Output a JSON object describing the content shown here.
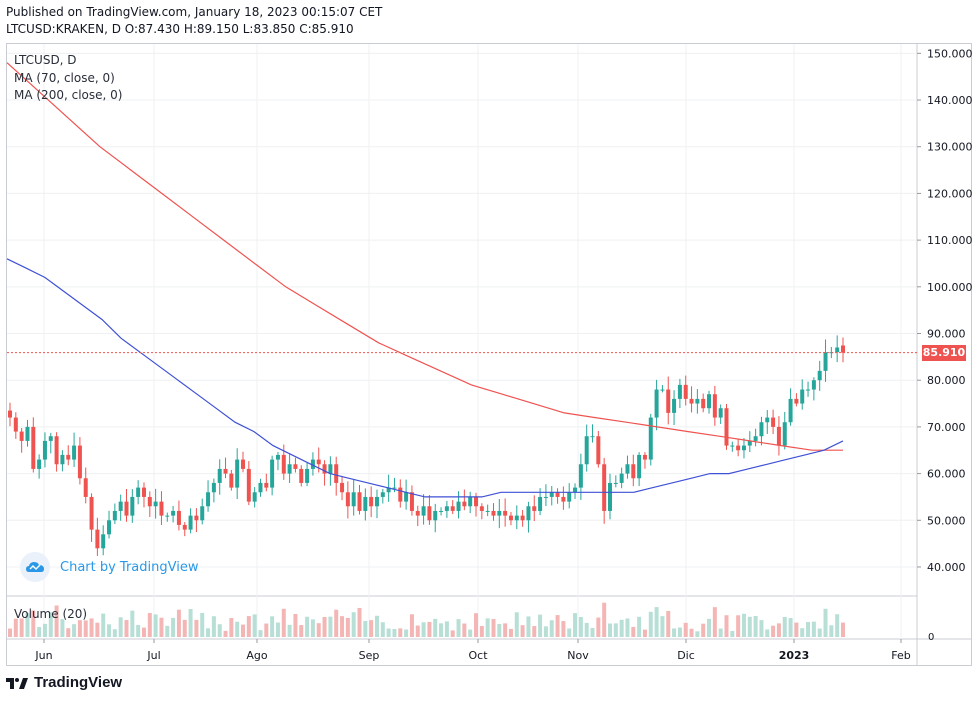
{
  "header": {
    "published": "Published on TradingView.com, January 18, 2023 00:15:07 CET",
    "symbol_line": "LTCUSD:KRAKEN, D  O:87.430  H:89.150  L:83.850  C:85.910"
  },
  "legend": {
    "symbol": "LTCUSD, D",
    "ma70": "MA (70, close, 0)",
    "ma200": "MA (200, close, 0)",
    "volume": "Volume (20)"
  },
  "watermark": "Chart by TradingView",
  "footer_brand": "TradingView",
  "colors": {
    "up": "#26a69a",
    "down": "#ef5350",
    "ma70": "#3f51d6",
    "ma200": "#ef5350",
    "vol_up": "#b7dfd6",
    "vol_down": "#f4b6b5"
  },
  "chart_data": {
    "type": "candlestick",
    "symbol": "LTCUSD",
    "exchange": "KRAKEN",
    "interval": "D",
    "last": {
      "open": 87.43,
      "high": 89.15,
      "low": 83.85,
      "close": 85.91
    },
    "last_price_label": "85.910",
    "y_axis": {
      "ticks": [
        "150.000",
        "140.000",
        "130.000",
        "120.000",
        "110.000",
        "100.000",
        "90.000",
        "80.000",
        "70.000",
        "60.000",
        "50.000",
        "40.000"
      ],
      "range": [
        34,
        152
      ]
    },
    "x_axis": {
      "labels": [
        "Jun",
        "Jul",
        "Ago",
        "Sep",
        "Oct",
        "Nov",
        "Dic",
        "2023",
        "Feb"
      ]
    },
    "volume_axis_label": "0",
    "close_series": [
      72,
      69,
      67,
      70,
      61,
      63,
      67,
      68,
      62,
      64,
      63,
      66,
      59,
      55,
      48,
      44,
      47,
      50,
      52,
      54,
      51,
      55,
      57,
      55,
      53,
      54,
      51,
      51,
      52,
      49,
      48,
      51,
      50,
      53,
      56,
      58,
      61,
      60,
      57,
      63,
      61,
      54,
      56,
      58,
      57,
      63,
      64,
      60,
      62,
      61,
      58,
      61,
      63,
      62,
      60,
      62,
      58,
      56,
      53,
      56,
      52,
      55,
      53,
      55,
      56,
      57,
      57,
      54,
      56,
      52,
      51,
      53,
      50,
      52,
      52,
      53,
      52,
      54,
      53,
      55,
      53,
      52,
      52,
      51,
      52,
      51,
      50,
      51,
      50,
      53,
      52,
      55,
      55,
      56,
      55,
      54,
      56,
      57,
      62,
      68,
      68,
      62,
      52,
      58,
      58,
      60,
      62,
      59,
      64,
      63,
      72,
      78,
      78,
      73,
      76,
      79,
      76,
      75,
      76,
      74,
      77,
      72,
      74,
      66,
      66,
      65,
      66,
      67,
      68,
      71,
      72,
      70,
      66,
      71,
      76,
      75,
      78,
      78,
      80,
      82,
      86,
      86,
      87,
      86
    ],
    "ma70_series": [
      106,
      104,
      102,
      99,
      96,
      93,
      89,
      86,
      83,
      80,
      77,
      74,
      71,
      69,
      66,
      64,
      62,
      60,
      59,
      58,
      57,
      56,
      55,
      55,
      55,
      55,
      56,
      56,
      56,
      56,
      56,
      56,
      56,
      56,
      57,
      58,
      59,
      60,
      60,
      61,
      62,
      63,
      64,
      65,
      67
    ],
    "ma200_series": [
      148,
      142,
      136,
      130,
      125,
      120,
      115,
      110,
      105,
      100,
      96,
      92,
      88,
      85,
      82,
      79,
      77,
      75,
      73,
      72,
      71,
      70,
      69,
      68,
      67,
      66,
      65,
      65
    ]
  }
}
